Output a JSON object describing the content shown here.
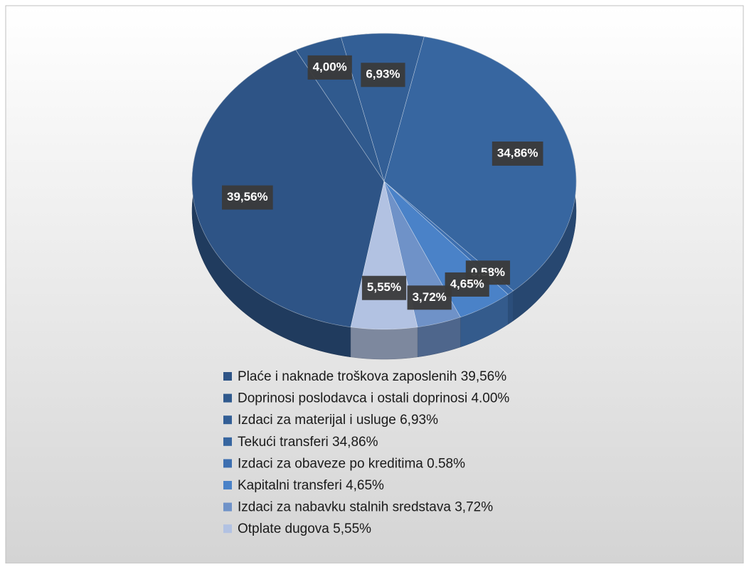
{
  "chart_data": {
    "type": "pie",
    "categories": [
      "Plaće i naknade troškova zaposlenih 39,56%",
      "Doprinosi poslodavca i ostali doprinosi  4.00%",
      "Izdaci za materijal  i usluge   6,93%",
      "Tekući transferi 34,86%",
      "Izdaci za obaveze po kreditima 0.58%",
      "Kapitalni transferi 4,65%",
      "Izdaci za nabavku stalnih sredstava  3,72%",
      "Otplate dugova 5,55%"
    ],
    "values": [
      39.56,
      4.0,
      6.93,
      34.86,
      0.58,
      4.65,
      3.72,
      5.55
    ],
    "value_labels": [
      "39,56%",
      "4,00%",
      "6,93%",
      "34,86%",
      "0,58%",
      "4,65%",
      "3,72%",
      "5,55%"
    ],
    "colors": [
      "#2e5486",
      "#305a8e",
      "#335f96",
      "#3766a0",
      "#3d6fb0",
      "#4a82c8",
      "#6f92c8",
      "#b2c2e2"
    ]
  }
}
